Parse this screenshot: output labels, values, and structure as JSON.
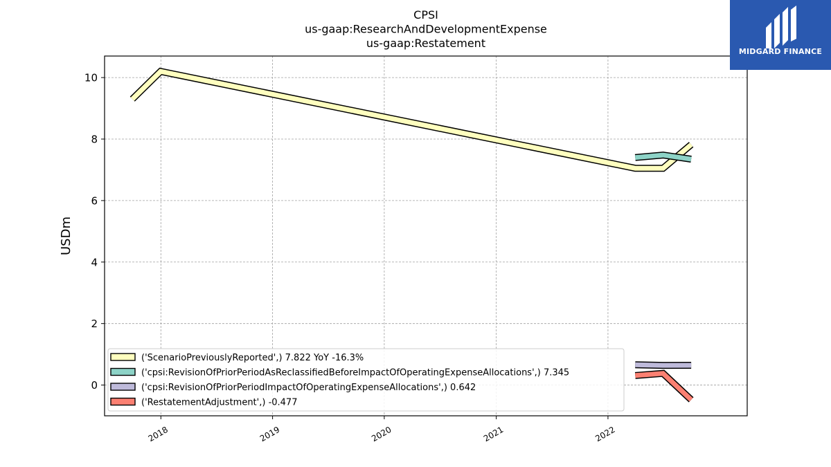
{
  "chart_data": {
    "type": "line",
    "title_lines": [
      "CPSI",
      "us-gaap:ResearchAndDevelopmentExpense",
      "us-gaap:Restatement"
    ],
    "ylabel": "USDm",
    "xlabel": "",
    "xlim": [
      "2017-07-01",
      "2023-04-01"
    ],
    "ylim": [
      -1.0,
      10.7
    ],
    "yticks": [
      0,
      2,
      4,
      6,
      8,
      10
    ],
    "xticks": [
      {
        "label": "2018",
        "date": "2018-01-01"
      },
      {
        "label": "2019",
        "date": "2019-01-01"
      },
      {
        "label": "2020",
        "date": "2020-01-01"
      },
      {
        "label": "2021",
        "date": "2021-01-01"
      },
      {
        "label": "2022",
        "date": "2022-01-01"
      }
    ],
    "grid": true,
    "legend_position": "lower-left",
    "series": [
      {
        "name": "('ScenarioPreviouslyReported',) 7.822 YoY -16.3%",
        "color": "#ffffbf",
        "points": [
          {
            "x": "2017-09-30",
            "y": 9.3
          },
          {
            "x": "2017-12-31",
            "y": 10.2
          },
          {
            "x": "2022-03-31",
            "y": 7.05
          },
          {
            "x": "2022-06-30",
            "y": 7.05
          },
          {
            "x": "2022-09-30",
            "y": 7.82
          }
        ]
      },
      {
        "name": "('cpsi:RevisionOfPriorPeriodAsReclassifiedBeforeImpactOfOperatingExpenseAllocations',) 7.345",
        "color": "#8dd3c7",
        "points": [
          {
            "x": "2022-03-31",
            "y": 7.4
          },
          {
            "x": "2022-06-30",
            "y": 7.48
          },
          {
            "x": "2022-09-30",
            "y": 7.345
          }
        ]
      },
      {
        "name": "('cpsi:RevisionOfPriorPeriodImpactOfOperatingExpenseAllocations',) 0.642",
        "color": "#bebada",
        "points": [
          {
            "x": "2022-03-31",
            "y": 0.66
          },
          {
            "x": "2022-06-30",
            "y": 0.64
          },
          {
            "x": "2022-09-30",
            "y": 0.642
          }
        ]
      },
      {
        "name": "('RestatementAdjustment',) -0.477",
        "color": "#fb8072",
        "points": [
          {
            "x": "2022-03-31",
            "y": 0.31
          },
          {
            "x": "2022-06-30",
            "y": 0.38
          },
          {
            "x": "2022-09-30",
            "y": -0.477
          }
        ]
      }
    ]
  },
  "logo": {
    "text": "MIDGARD FINANCE",
    "color": "#2a59b0"
  }
}
